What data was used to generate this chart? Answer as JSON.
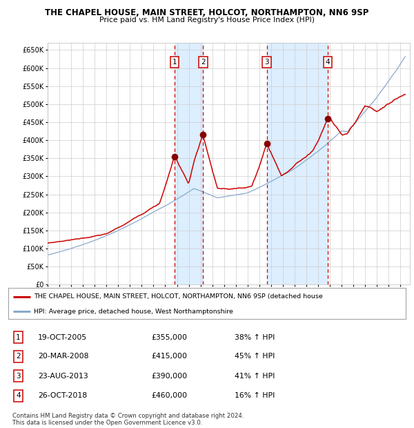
{
  "title": "THE CHAPEL HOUSE, MAIN STREET, HOLCOT, NORTHAMPTON, NN6 9SP",
  "subtitle": "Price paid vs. HM Land Registry's House Price Index (HPI)",
  "ylim": [
    0,
    670000
  ],
  "yticks": [
    0,
    50000,
    100000,
    150000,
    200000,
    250000,
    300000,
    350000,
    400000,
    450000,
    500000,
    550000,
    600000,
    650000
  ],
  "ytick_labels": [
    "£0",
    "£50K",
    "£100K",
    "£150K",
    "£200K",
    "£250K",
    "£300K",
    "£350K",
    "£400K",
    "£450K",
    "£500K",
    "£550K",
    "£600K",
    "£650K"
  ],
  "xlim_start": 1995.0,
  "xlim_end": 2025.8,
  "sales": [
    {
      "num": 1,
      "date": "19-OCT-2005",
      "year": 2005.8,
      "price": 355000,
      "pct": "38%",
      "dir": "↑"
    },
    {
      "num": 2,
      "date": "20-MAR-2008",
      "year": 2008.22,
      "price": 415000,
      "pct": "45%",
      "dir": "↑"
    },
    {
      "num": 3,
      "date": "23-AUG-2013",
      "year": 2013.64,
      "price": 390000,
      "pct": "41%",
      "dir": "↑"
    },
    {
      "num": 4,
      "date": "26-OCT-2018",
      "year": 2018.82,
      "price": 460000,
      "pct": "16%",
      "dir": "↑"
    }
  ],
  "legend_line1": "THE CHAPEL HOUSE, MAIN STREET, HOLCOT, NORTHAMPTON, NN6 9SP (detached house",
  "legend_line2": "HPI: Average price, detached house, West Northamptonshire",
  "footer": "Contains HM Land Registry data © Crown copyright and database right 2024.\nThis data is licensed under the Open Government Licence v3.0.",
  "red_color": "#cc0000",
  "blue_color": "#88aacc",
  "bg_color": "#ffffff",
  "grid_color": "#cccccc",
  "shade_color": "#ddeeff",
  "marker_color": "#880000"
}
